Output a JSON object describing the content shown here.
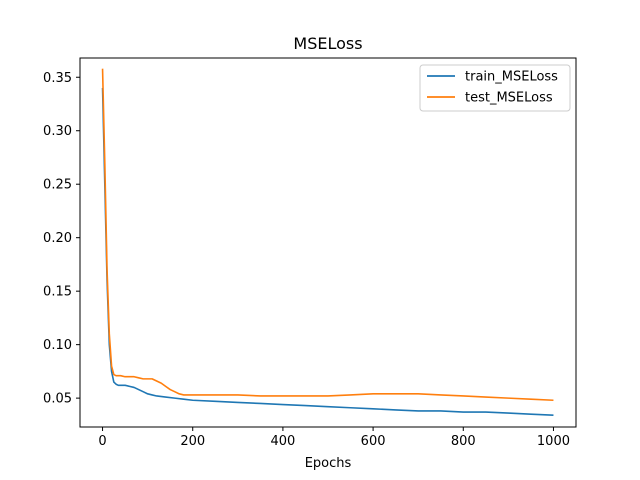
{
  "chart_data": {
    "type": "line",
    "title": "MSELoss",
    "xlabel": "Epochs",
    "ylabel": "",
    "xlim": [
      -50,
      1050
    ],
    "ylim": [
      0.023,
      0.368
    ],
    "xticks": [
      0,
      200,
      400,
      600,
      800,
      1000
    ],
    "yticks": [
      0.05,
      0.1,
      0.15,
      0.2,
      0.25,
      0.3,
      0.35
    ],
    "ytick_labels": [
      "0.05",
      "0.10",
      "0.15",
      "0.20",
      "0.25",
      "0.30",
      "0.35"
    ],
    "grid": false,
    "legend_position": "top-right",
    "series": [
      {
        "name": "train_MSELoss",
        "color": "#1f77b4",
        "x": [
          0,
          5,
          10,
          15,
          20,
          25,
          30,
          35,
          40,
          50,
          60,
          70,
          80,
          90,
          100,
          110,
          120,
          140,
          160,
          180,
          200,
          250,
          300,
          350,
          400,
          450,
          500,
          550,
          600,
          650,
          700,
          750,
          800,
          850,
          900,
          950,
          1000
        ],
        "y": [
          0.34,
          0.25,
          0.16,
          0.1,
          0.075,
          0.065,
          0.063,
          0.062,
          0.062,
          0.062,
          0.061,
          0.06,
          0.058,
          0.056,
          0.054,
          0.053,
          0.052,
          0.051,
          0.05,
          0.049,
          0.048,
          0.047,
          0.046,
          0.045,
          0.044,
          0.043,
          0.042,
          0.041,
          0.04,
          0.039,
          0.038,
          0.038,
          0.037,
          0.037,
          0.036,
          0.035,
          0.034
        ]
      },
      {
        "name": "test_MSELoss",
        "color": "#ff7f0e",
        "x": [
          0,
          5,
          10,
          15,
          20,
          25,
          30,
          35,
          40,
          50,
          60,
          70,
          80,
          90,
          100,
          110,
          120,
          130,
          140,
          150,
          160,
          170,
          180,
          200,
          250,
          300,
          350,
          400,
          450,
          500,
          550,
          600,
          650,
          700,
          750,
          800,
          850,
          900,
          950,
          1000
        ],
        "y": [
          0.358,
          0.27,
          0.17,
          0.11,
          0.08,
          0.072,
          0.071,
          0.071,
          0.071,
          0.07,
          0.07,
          0.07,
          0.069,
          0.068,
          0.068,
          0.068,
          0.066,
          0.064,
          0.061,
          0.058,
          0.056,
          0.054,
          0.053,
          0.053,
          0.053,
          0.053,
          0.052,
          0.052,
          0.052,
          0.052,
          0.053,
          0.054,
          0.054,
          0.054,
          0.053,
          0.052,
          0.051,
          0.05,
          0.049,
          0.048
        ]
      }
    ]
  }
}
